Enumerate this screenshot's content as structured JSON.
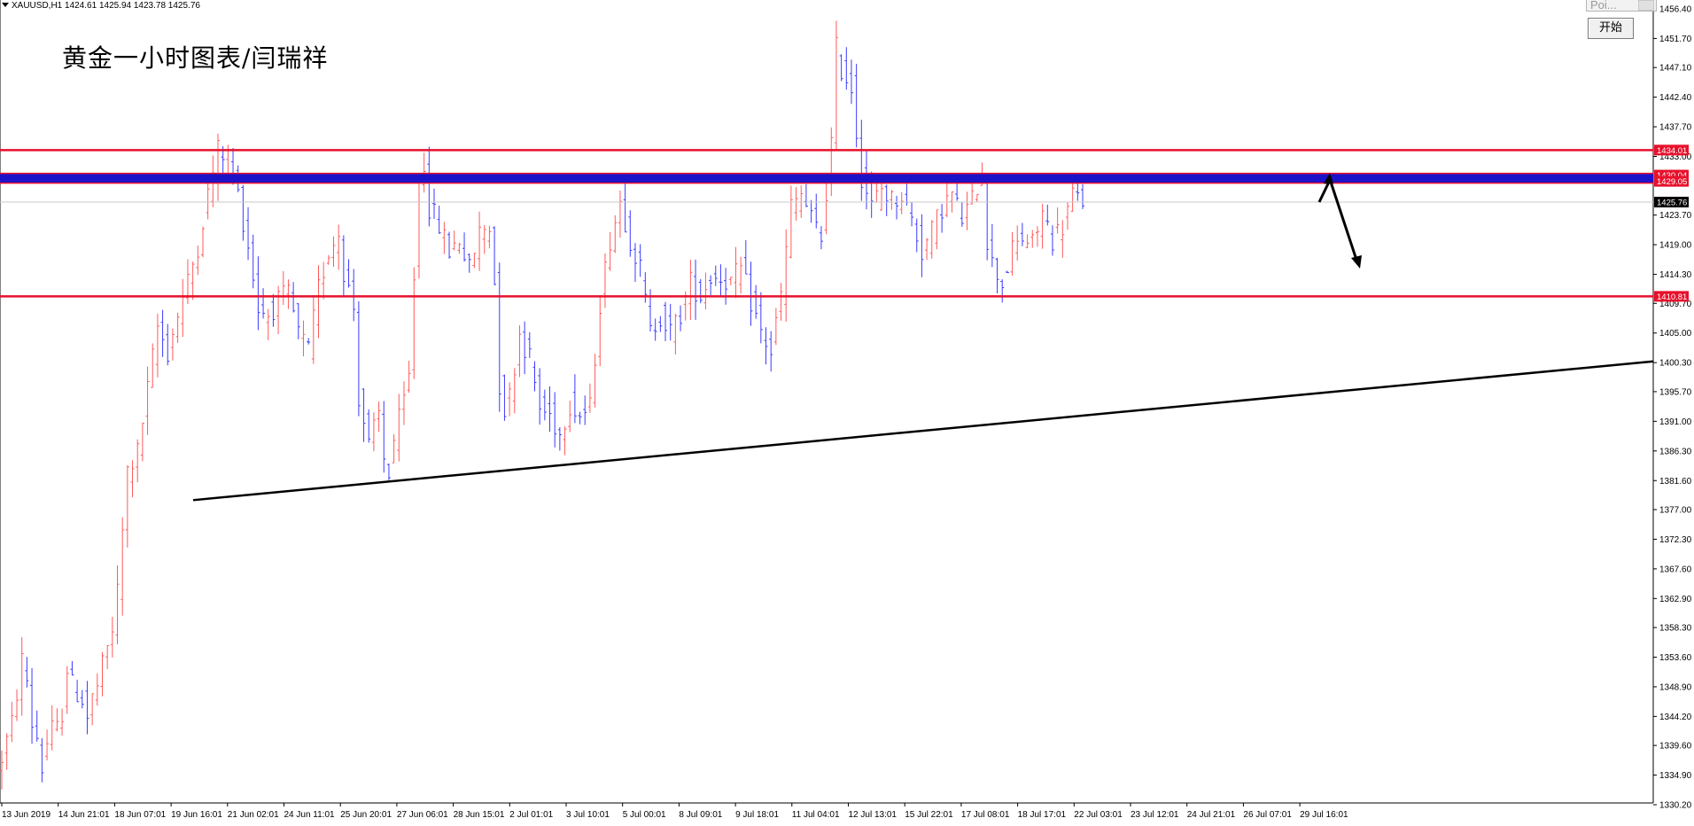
{
  "header": {
    "symbol_line": "XAUUSD,H1  1424.61 1425.94 1423.78 1425.76"
  },
  "title": "黄金一小时图表/闫瑞祥",
  "widget": {
    "input_placeholder": "Poi...",
    "start_button": "开始"
  },
  "colors": {
    "bull_candle": "#ff5a5a",
    "bear_candle": "#3b3bff",
    "resistance_line": "#e8102c",
    "price_band": "#1c12c8",
    "trendline": "#000000",
    "price_tag_bg": "#e8102c",
    "current_price_bg": "#000000"
  },
  "chart_data": {
    "type": "candlestick",
    "symbol": "XAUUSD",
    "timeframe": "H1",
    "ylim": [
      1330.2,
      1456.4
    ],
    "y_ticks": [
      "1456.40",
      "1451.70",
      "1447.10",
      "1442.40",
      "1437.70",
      "1433.00",
      "1423.70",
      "1419.00",
      "1414.30",
      "1409.70",
      "1405.00",
      "1400.30",
      "1395.70",
      "1391.00",
      "1386.30",
      "1381.60",
      "1377.00",
      "1372.30",
      "1367.60",
      "1362.90",
      "1358.30",
      "1353.60",
      "1348.90",
      "1344.20",
      "1339.60",
      "1334.90",
      "1330.20"
    ],
    "x_ticks": [
      "13 Jun 2019",
      "14 Jun 21:01",
      "18 Jun 07:01",
      "19 Jun 16:01",
      "21 Jun 02:01",
      "24 Jun 11:01",
      "25 Jun 20:01",
      "27 Jun 06:01",
      "28 Jun 15:01",
      "2 Jul 01:01",
      "3 Jul 10:01",
      "5 Jul 00:01",
      "8 Jul 09:01",
      "9 Jul 18:01",
      "11 Jul 04:01",
      "12 Jul 13:01",
      "15 Jul 22:01",
      "17 Jul 08:01",
      "18 Jul 17:01",
      "22 Jul 03:01",
      "23 Jul 12:01",
      "24 Jul 21:01",
      "26 Jul 07:01",
      "29 Jul 16:01"
    ],
    "price_path": [
      [
        0,
        1335
      ],
      [
        3,
        1343
      ],
      [
        5,
        1353
      ],
      [
        6,
        1350
      ],
      [
        7,
        1343
      ],
      [
        8,
        1341
      ],
      [
        9,
        1336
      ],
      [
        10,
        1340
      ],
      [
        11,
        1342
      ],
      [
        12,
        1342
      ],
      [
        13,
        1345
      ],
      [
        14,
        1352
      ],
      [
        15,
        1349
      ],
      [
        16,
        1348
      ],
      [
        17,
        1347
      ],
      [
        18,
        1344
      ],
      [
        19,
        1347
      ],
      [
        20,
        1349
      ],
      [
        22,
        1355
      ],
      [
        23,
        1358
      ],
      [
        24,
        1364
      ],
      [
        26,
        1383
      ],
      [
        28,
        1386
      ],
      [
        30,
        1396
      ],
      [
        32,
        1406
      ],
      [
        34,
        1402
      ],
      [
        36,
        1408
      ],
      [
        38,
        1413
      ],
      [
        40,
        1419
      ],
      [
        42,
        1427
      ],
      [
        44,
        1434
      ],
      [
        46,
        1433
      ],
      [
        48,
        1427
      ],
      [
        50,
        1419
      ],
      [
        52,
        1409
      ],
      [
        54,
        1408
      ],
      [
        56,
        1410
      ],
      [
        58,
        1411
      ],
      [
        60,
        1405
      ],
      [
        62,
        1402
      ],
      [
        64,
        1412
      ],
      [
        66,
        1418
      ],
      [
        68,
        1421
      ],
      [
        69,
        1415
      ],
      [
        70,
        1412
      ],
      [
        71,
        1409
      ],
      [
        72,
        1395
      ],
      [
        74,
        1387
      ],
      [
        76,
        1392
      ],
      [
        77,
        1385
      ],
      [
        78,
        1383
      ],
      [
        79,
        1388
      ],
      [
        81,
        1394
      ],
      [
        82,
        1398
      ],
      [
        84,
        1430
      ],
      [
        85,
        1432
      ],
      [
        86,
        1425
      ],
      [
        88,
        1422
      ],
      [
        90,
        1418
      ],
      [
        92,
        1420
      ],
      [
        94,
        1415
      ],
      [
        96,
        1421
      ],
      [
        98,
        1422
      ],
      [
        99,
        1413
      ],
      [
        100,
        1397
      ],
      [
        101,
        1393
      ],
      [
        102,
        1395
      ],
      [
        104,
        1405
      ],
      [
        106,
        1401
      ],
      [
        108,
        1393
      ],
      [
        110,
        1392
      ],
      [
        112,
        1389
      ],
      [
        114,
        1394
      ],
      [
        116,
        1392
      ],
      [
        118,
        1393
      ],
      [
        120,
        1410
      ],
      [
        122,
        1420
      ],
      [
        124,
        1426
      ],
      [
        126,
        1420
      ],
      [
        128,
        1415
      ],
      [
        130,
        1405
      ],
      [
        132,
        1408
      ],
      [
        134,
        1405
      ],
      [
        136,
        1408
      ],
      [
        138,
        1413
      ],
      [
        140,
        1411
      ],
      [
        142,
        1414
      ],
      [
        144,
        1414
      ],
      [
        146,
        1413
      ],
      [
        148,
        1415
      ],
      [
        150,
        1410
      ],
      [
        152,
        1405
      ],
      [
        154,
        1402
      ],
      [
        156,
        1411
      ],
      [
        158,
        1425
      ],
      [
        160,
        1427
      ],
      [
        162,
        1423
      ],
      [
        164,
        1420
      ],
      [
        166,
        1435
      ],
      [
        167,
        1450
      ],
      [
        168,
        1447
      ],
      [
        170,
        1444
      ],
      [
        172,
        1430
      ],
      [
        174,
        1425
      ],
      [
        176,
        1428
      ],
      [
        178,
        1426
      ],
      [
        180,
        1427
      ],
      [
        182,
        1423
      ],
      [
        184,
        1418
      ],
      [
        186,
        1421
      ],
      [
        188,
        1425
      ],
      [
        190,
        1427
      ],
      [
        192,
        1423
      ],
      [
        194,
        1426
      ],
      [
        196,
        1431
      ],
      [
        197,
        1420
      ],
      [
        198,
        1416
      ],
      [
        200,
        1413
      ],
      [
        202,
        1418
      ],
      [
        204,
        1420
      ],
      [
        206,
        1419
      ],
      [
        208,
        1424
      ],
      [
        210,
        1420
      ],
      [
        212,
        1422
      ],
      [
        214,
        1427
      ],
      [
        215,
        1426
      ]
    ],
    "resistance_levels": [
      1434.01,
      1410.81
    ],
    "price_band": [
      1429.05,
      1430.04
    ],
    "price_tags": [
      "1434.01",
      "1430.04",
      "1429.05",
      "1425.76",
      "1410.81"
    ],
    "current_price": 1425.76,
    "trendline": {
      "from": [
        "19 Jun 16:01",
        1378.5
      ],
      "to": [
        "29 Jul 16:01+",
        1400.5
      ]
    },
    "forecast_arrows": [
      [
        1425.76,
        1429.8
      ],
      [
        1429.8,
        1415.5
      ]
    ]
  }
}
